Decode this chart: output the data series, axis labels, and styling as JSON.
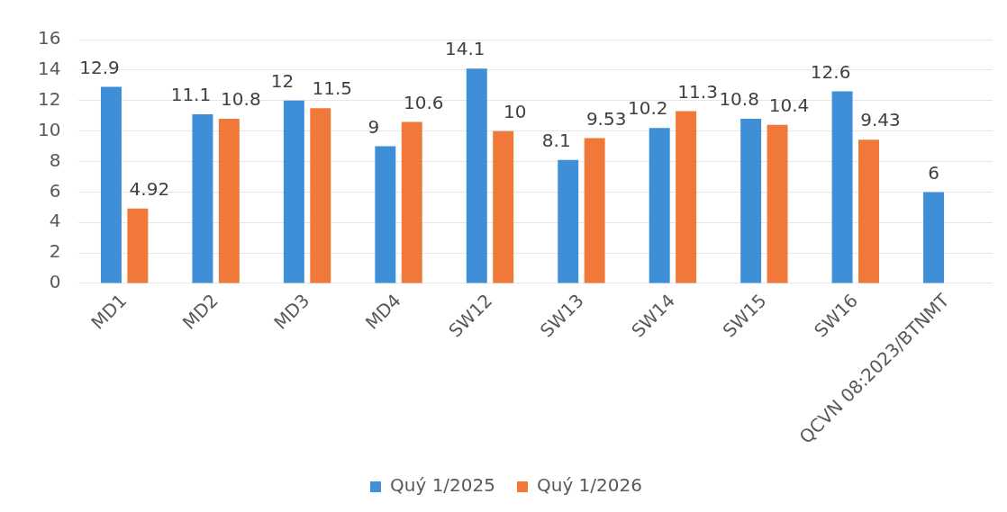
{
  "chart_data": {
    "type": "bar",
    "categories": [
      "MD1",
      "MD2",
      "MD3",
      "MD4",
      "SW12",
      "SW13",
      "SW14",
      "SW15",
      "SW16",
      "QCVN 08:2023/BTNMT"
    ],
    "series": [
      {
        "name": "Quý 1/2025",
        "color": "#3e8ed8",
        "values": [
          12.9,
          11.1,
          12,
          9,
          14.1,
          8.1,
          10.2,
          10.8,
          12.6,
          6
        ]
      },
      {
        "name": "Quý 1/2026",
        "color": "#f0793a",
        "values": [
          4.92,
          10.8,
          11.5,
          10.6,
          10,
          9.53,
          11.3,
          10.4,
          9.43,
          null
        ]
      }
    ],
    "ylim": [
      0,
      16
    ],
    "yticks": [
      0,
      2,
      4,
      6,
      8,
      10,
      12,
      14,
      16
    ],
    "grid": "y",
    "legend": "bottom",
    "data_labels": true
  }
}
